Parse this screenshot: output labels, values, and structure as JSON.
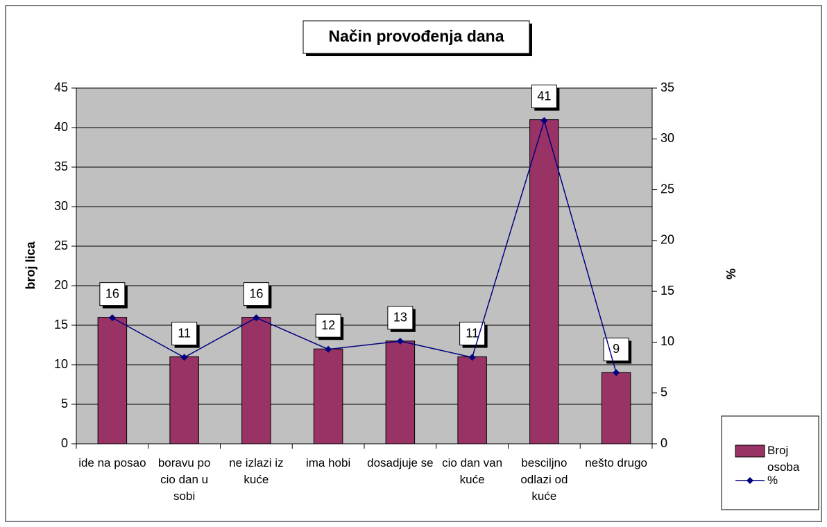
{
  "chart_data": {
    "type": "bar_line",
    "title": "Način provođenja dana",
    "y_label": "broj lica",
    "y2_label": "%",
    "categories": [
      "ide na posao",
      "boravu po cio dan u sobi",
      "ne izlazi iz kuće",
      "ima hobi",
      "dosadjuje se",
      "cio dan van kuće",
      "besciljno odlazi od kuće",
      "nešto drugo"
    ],
    "series": [
      {
        "name": "Broj osoba",
        "type": "bar",
        "color": "#993366",
        "values": [
          16,
          11,
          16,
          12,
          13,
          11,
          41,
          9
        ]
      },
      {
        "name": "%",
        "type": "line",
        "axis": "y2",
        "color": "#000080",
        "values": [
          12.4,
          8.5,
          12.4,
          9.3,
          10.1,
          8.5,
          31.8,
          7.0
        ]
      }
    ],
    "ylim": [
      0,
      45
    ],
    "yticks": [
      0,
      5,
      10,
      15,
      20,
      25,
      30,
      35,
      40,
      45
    ],
    "y2lim": [
      0,
      35
    ],
    "y2ticks": [
      0,
      5,
      10,
      15,
      20,
      25,
      30,
      35
    ],
    "grid": true,
    "legend": "bottom-right"
  }
}
